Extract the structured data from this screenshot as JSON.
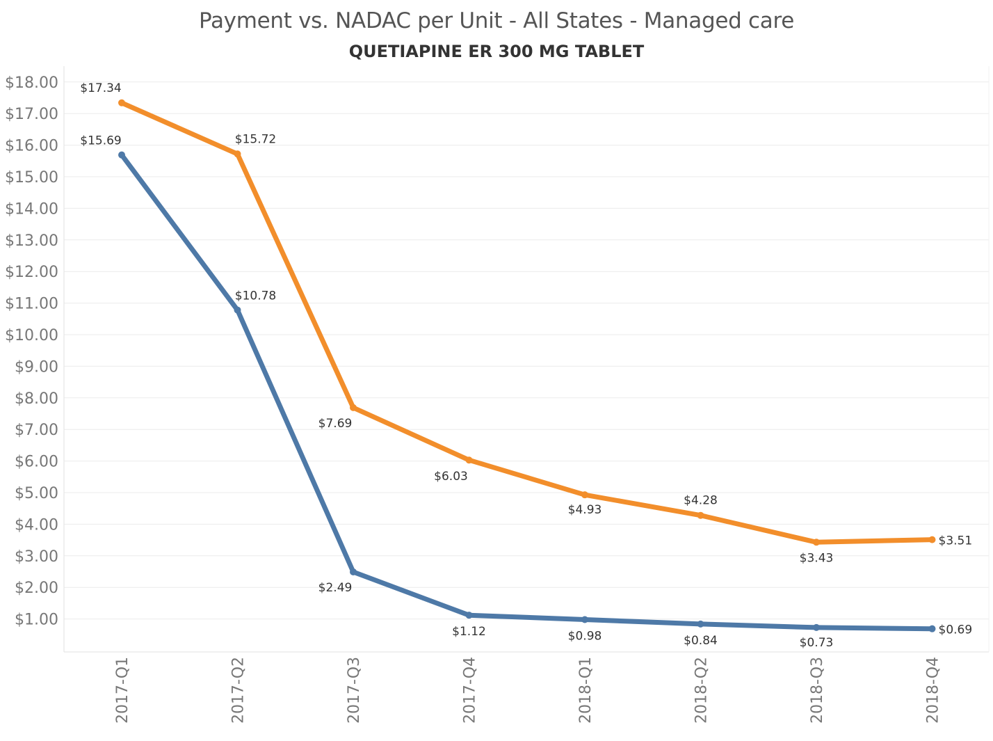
{
  "chart_data": {
    "type": "line",
    "title": "Payment vs. NADAC per Unit - All States - Managed care",
    "subtitle": "QUETIAPINE ER 300 MG TABLET",
    "categories": [
      "2017-Q1",
      "2017-Q2",
      "2017-Q3",
      "2017-Q4",
      "2018-Q1",
      "2018-Q2",
      "2018-Q3",
      "2018-Q4"
    ],
    "series": [
      {
        "color": "#f28e2b",
        "values": [
          17.34,
          15.72,
          7.69,
          6.03,
          4.93,
          4.28,
          3.43,
          3.51
        ],
        "labels": [
          "$17.34",
          "$15.72",
          "$7.69",
          "$6.03",
          "$4.93",
          "$4.28",
          "$3.43",
          "$3.51"
        ]
      },
      {
        "color": "#4e79a7",
        "values": [
          15.69,
          10.78,
          2.49,
          1.12,
          0.98,
          0.84,
          0.73,
          0.69
        ],
        "labels": [
          "$15.69",
          "$10.78",
          "$2.49",
          "$1.12",
          "$0.98",
          "$0.84",
          "$0.73",
          "$0.69"
        ]
      }
    ],
    "y_ticks": [
      "$1.00",
      "$2.00",
      "$3.00",
      "$4.00",
      "$5.00",
      "$6.00",
      "$7.00",
      "$8.00",
      "$9.00",
      "$10.00",
      "$11.00",
      "$12.00",
      "$13.00",
      "$14.00",
      "$15.00",
      "$16.00",
      "$17.00",
      "$18.00"
    ],
    "ylim": [
      0,
      18
    ],
    "grid": true,
    "legend": "none"
  }
}
